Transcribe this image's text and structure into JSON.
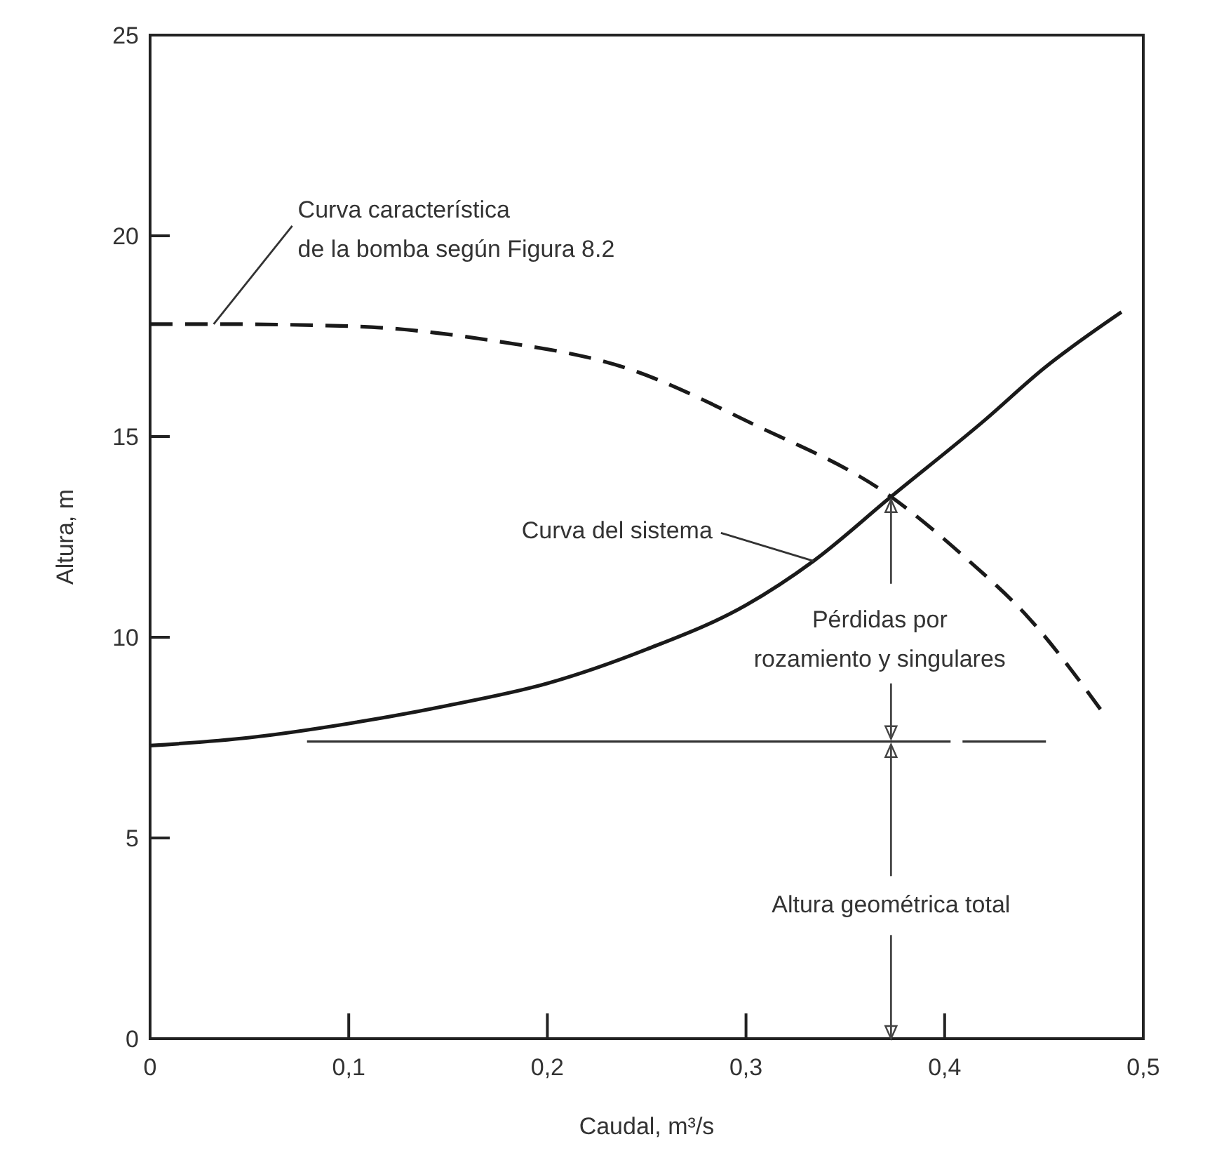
{
  "chart_data": {
    "type": "line",
    "xlabel": "Caudal, m³/s",
    "ylabel": "Altura, m",
    "xlim": [
      0,
      0.5
    ],
    "ylim": [
      0,
      25
    ],
    "xticks": [
      0,
      {
        "value": 0.1,
        "label": "0,1"
      },
      {
        "value": 0.2,
        "label": "0,2"
      },
      {
        "value": 0.3,
        "label": "0,3"
      },
      {
        "value": 0.4,
        "label": "0,4"
      },
      {
        "value": 0.5,
        "label": "0,5"
      }
    ],
    "yticks": [
      0,
      5,
      10,
      15,
      20,
      25
    ],
    "grid": false,
    "marker": "none",
    "series": [
      {
        "color": "#1a1a1a",
        "line_style": "dashed",
        "x": [
          0,
          0.032,
          0.1,
          0.171,
          0.24,
          0.304,
          0.373,
          0.41,
          0.442,
          0.48
        ],
        "values": [
          17.8,
          17.8,
          17.75,
          17.4,
          16.7,
          15.3,
          13.5,
          12,
          10.5,
          8.1
        ]
      },
      {
        "color": "#1a1a1a",
        "line_style": "solid",
        "x": [
          0,
          0.05,
          0.1,
          0.15,
          0.2,
          0.25,
          0.3,
          0.334,
          0.373,
          0.42,
          0.45,
          0.489
        ],
        "values": [
          7.3,
          7.5,
          7.85,
          8.3,
          8.85,
          9.7,
          10.8,
          11.9,
          13.5,
          15.4,
          16.7,
          18.1
        ]
      },
      {
        "color": "#333333",
        "line_style": "solid",
        "x": [
          0.079,
          0.403
        ],
        "values": [
          7.4,
          7.4
        ]
      },
      {
        "color": "#333333",
        "line_style": "solid",
        "x": [
          0.409,
          0.451
        ],
        "values": [
          7.4,
          7.4
        ]
      }
    ],
    "annotations": [
      {
        "text": "Curva característica\nde la bomba según Figura 8.2",
        "x": 0.032,
        "y": 17.8
      },
      {
        "text": "Curva del sistema",
        "x": 0.334,
        "y": 11.9
      },
      {
        "text": "Pérdidas por\nrozamiento y singulares",
        "x": 0.373,
        "y": 13.5
      },
      {
        "text": "Altura geométrica total",
        "x": 0.373,
        "y": 7.4
      }
    ]
  }
}
